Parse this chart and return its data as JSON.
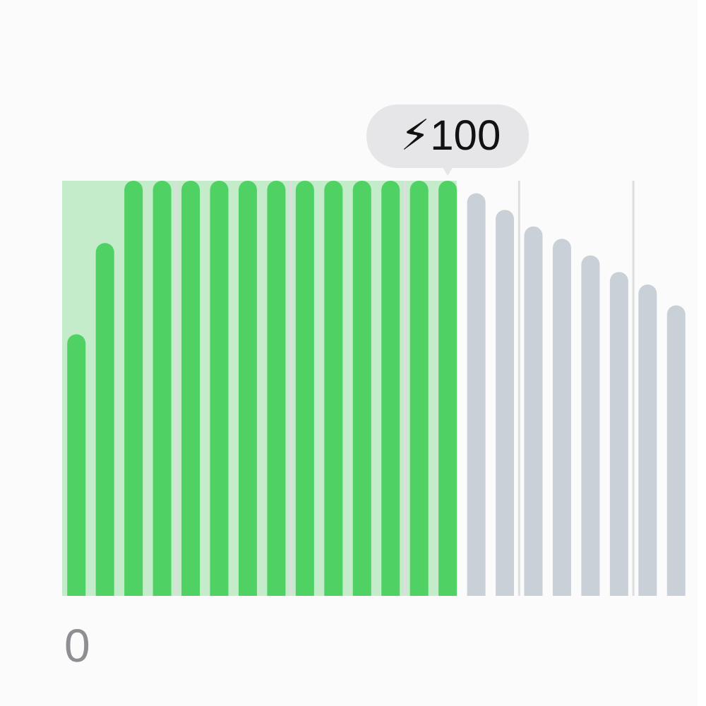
{
  "chart_data": {
    "type": "bar",
    "categories": [
      "0",
      null,
      null,
      null,
      null,
      null,
      null,
      null,
      null,
      null,
      null,
      null,
      null,
      null,
      null,
      null,
      null,
      null,
      null,
      null,
      null,
      null
    ],
    "values": [
      63,
      85,
      100,
      100,
      100,
      100,
      100,
      100,
      100,
      100,
      100,
      100,
      100,
      100,
      97,
      93,
      89,
      86,
      82,
      78,
      75,
      70
    ],
    "colors": [
      "#50d164",
      "#50d164",
      "#50d164",
      "#50d164",
      "#50d164",
      "#50d164",
      "#50d164",
      "#50d164",
      "#50d164",
      "#50d164",
      "#50d164",
      "#50d164",
      "#50d164",
      "#50d164",
      "#c9d0d8",
      "#c9d0d8",
      "#c9d0d8",
      "#c9d0d8",
      "#c9d0d8",
      "#c9d0d8",
      "#c9d0d8",
      "#c9d0d8"
    ],
    "value_labels": [
      null,
      null,
      null,
      null,
      null,
      null,
      null,
      null,
      null,
      null,
      null,
      null,
      null,
      "⚡100",
      null,
      null,
      null,
      null,
      null,
      null,
      null,
      null
    ],
    "ylim": [
      0,
      100
    ],
    "tick_labels": "x"
  }
}
